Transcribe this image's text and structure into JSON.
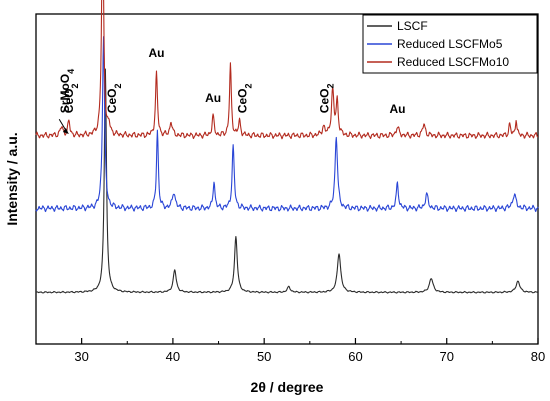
{
  "chart_data": {
    "type": "line",
    "xlabel": "2θ / degree",
    "ylabel": "Intensity / a.u.",
    "xlim": [
      25,
      80
    ],
    "xticks": [
      30,
      40,
      50,
      60,
      70,
      80
    ],
    "y_tick_labels": "none",
    "grid": false,
    "legend_position": "top-right",
    "series": [
      {
        "name": "LSCF",
        "color": "#2b2b2b",
        "offset": 0,
        "baseline": 0.02,
        "peaks": [
          {
            "x": 32.6,
            "h": 0.8,
            "w": 0.14
          },
          {
            "x": 40.2,
            "h": 0.08,
            "w": 0.2
          },
          {
            "x": 46.9,
            "h": 0.2,
            "w": 0.18
          },
          {
            "x": 52.7,
            "h": 0.02,
            "w": 0.2
          },
          {
            "x": 58.2,
            "h": 0.14,
            "w": 0.22
          },
          {
            "x": 68.3,
            "h": 0.05,
            "w": 0.25
          },
          {
            "x": 77.8,
            "h": 0.04,
            "w": 0.25
          }
        ]
      },
      {
        "name": "Reduced LSCFMo5",
        "color": "#2a46d6",
        "offset": 0.3,
        "baseline": 0.02,
        "peaks": [
          {
            "x": 32.4,
            "h": 0.62,
            "w": 0.14
          },
          {
            "x": 38.3,
            "h": 0.28,
            "w": 0.12
          },
          {
            "x": 40.1,
            "h": 0.06,
            "w": 0.18
          },
          {
            "x": 44.5,
            "h": 0.1,
            "w": 0.12
          },
          {
            "x": 46.6,
            "h": 0.22,
            "w": 0.14
          },
          {
            "x": 57.9,
            "h": 0.26,
            "w": 0.16
          },
          {
            "x": 64.6,
            "h": 0.09,
            "w": 0.14
          },
          {
            "x": 67.8,
            "h": 0.05,
            "w": 0.18
          },
          {
            "x": 77.4,
            "h": 0.05,
            "w": 0.22
          }
        ]
      },
      {
        "name": "Reduced LSCFMo10",
        "color": "#b32b1f",
        "offset": 0.56,
        "baseline": 0.02,
        "peaks": [
          {
            "x": 27.8,
            "h": 0.03,
            "w": 0.18
          },
          {
            "x": 28.6,
            "h": 0.05,
            "w": 0.14
          },
          {
            "x": 32.3,
            "h": 0.82,
            "w": 0.13
          },
          {
            "x": 33.0,
            "h": 0.03,
            "w": 0.15
          },
          {
            "x": 38.2,
            "h": 0.22,
            "w": 0.13
          },
          {
            "x": 39.8,
            "h": 0.05,
            "w": 0.15
          },
          {
            "x": 44.4,
            "h": 0.07,
            "w": 0.13
          },
          {
            "x": 46.3,
            "h": 0.25,
            "w": 0.12
          },
          {
            "x": 47.3,
            "h": 0.05,
            "w": 0.14
          },
          {
            "x": 56.5,
            "h": 0.03,
            "w": 0.18
          },
          {
            "x": 57.5,
            "h": 0.16,
            "w": 0.16
          },
          {
            "x": 58.0,
            "h": 0.12,
            "w": 0.14
          },
          {
            "x": 64.6,
            "h": 0.03,
            "w": 0.18
          },
          {
            "x": 67.5,
            "h": 0.04,
            "w": 0.18
          },
          {
            "x": 76.9,
            "h": 0.04,
            "w": 0.12
          },
          {
            "x": 77.6,
            "h": 0.06,
            "w": 0.1
          }
        ]
      }
    ],
    "annotations": [
      {
        "main": "SrMoO",
        "sub": "4",
        "x": 28.2,
        "y": 0.66,
        "rotate": -90,
        "arrow_to": [
          28.6,
          0.6
        ]
      },
      {
        "main": "CeO",
        "sub": "2",
        "x": 28.6,
        "y": 0.66,
        "rotate": -90
      },
      {
        "main": "CeO",
        "sub": "2",
        "x": 33.3,
        "y": 0.66,
        "rotate": -90
      },
      {
        "main": "Au",
        "sub": "",
        "x": 38.2,
        "y": 0.86,
        "rotate": 0
      },
      {
        "main": "Au",
        "sub": "",
        "x": 44.4,
        "y": 0.7,
        "rotate": 0
      },
      {
        "main": "CeO",
        "sub": "2",
        "x": 47.6,
        "y": 0.66,
        "rotate": -90
      },
      {
        "main": "CeO",
        "sub": "2",
        "x": 56.6,
        "y": 0.66,
        "rotate": -90
      },
      {
        "main": "Au",
        "sub": "",
        "x": 64.6,
        "y": 0.66,
        "rotate": 0
      }
    ]
  }
}
